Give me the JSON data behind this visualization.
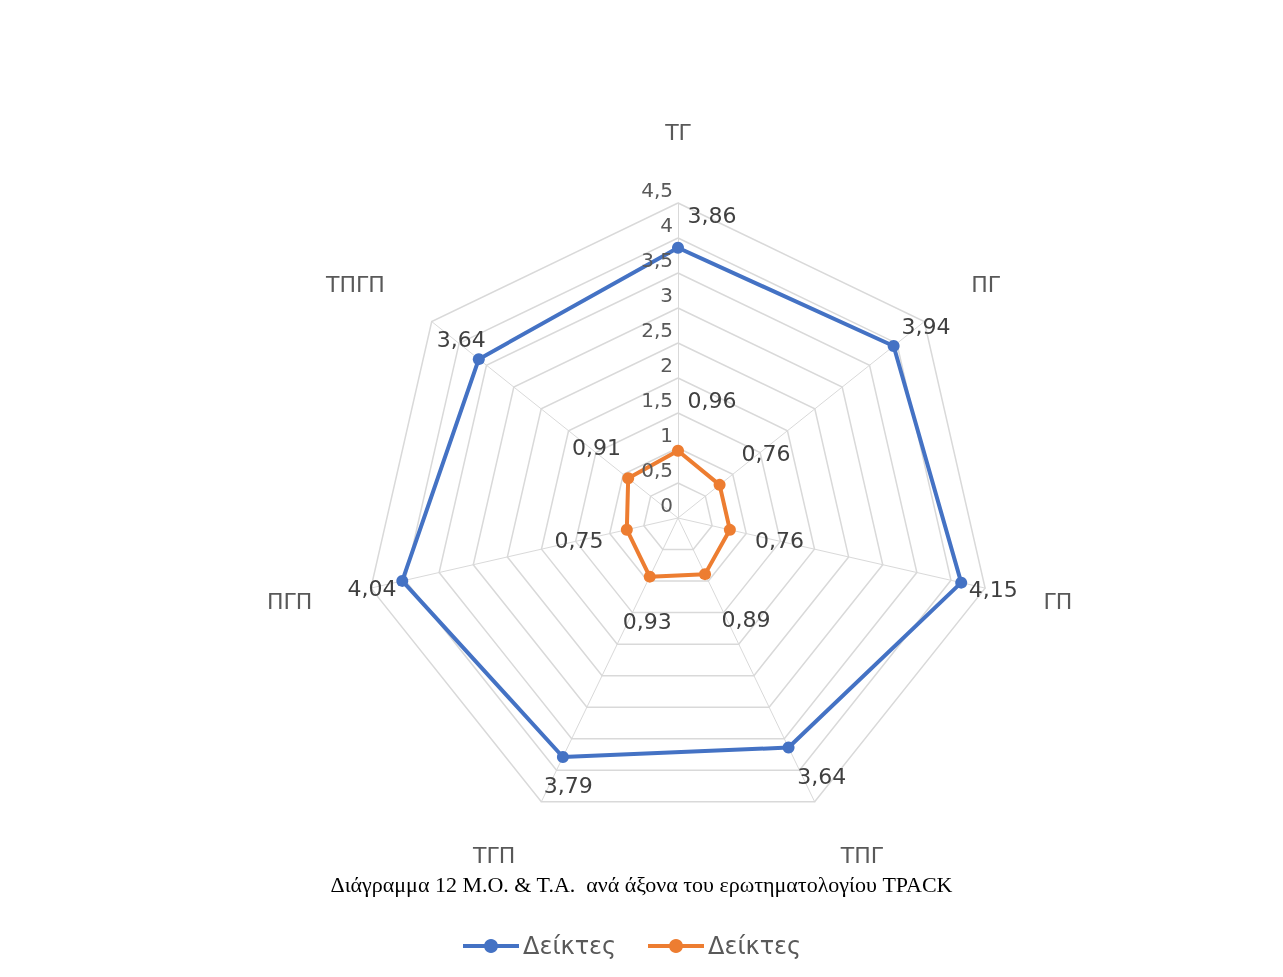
{
  "chart_data": {
    "type": "radar",
    "title": "Διάγραμμα 12 Μ.Ο. & Τ.Α.  ανά άξονα του ερωτηματολογίου TPACK",
    "categories": [
      "ΤΓ",
      "ΠΓ",
      "ΓΠ",
      "ΤΠΓ",
      "ΤΓΠ",
      "ΠΓΠ",
      "ΤΠΓΠ"
    ],
    "ylim": [
      0,
      4.5
    ],
    "yticks": [
      0,
      {
        "value": 0.5,
        "label": "0,5"
      },
      1,
      {
        "value": 1.5,
        "label": "1,5"
      },
      2,
      {
        "value": 2.5,
        "label": "2,5"
      },
      3,
      {
        "value": 3.5,
        "label": "3,5"
      },
      4,
      {
        "value": 4.5,
        "label": "4,5"
      }
    ],
    "grid": true,
    "legend": "bottom",
    "marker": "circle",
    "series": [
      {
        "name": "Δείκτες",
        "color": "#4472c4",
        "values": [
          3.86,
          3.94,
          4.15,
          3.64,
          3.79,
          4.04,
          3.64
        ],
        "value_labels": [
          "3,86",
          "3,94",
          "4,15",
          "3,64",
          "3,79",
          "4,04",
          "3,64"
        ]
      },
      {
        "name": "Δείκτες",
        "color": "#ed7d31",
        "values": [
          0.96,
          0.76,
          0.76,
          0.89,
          0.93,
          0.75,
          0.91
        ],
        "value_labels": [
          "0,96",
          "0,76",
          "0,76",
          "0,89",
          "0,93",
          "0,75",
          "0,91"
        ]
      }
    ]
  }
}
